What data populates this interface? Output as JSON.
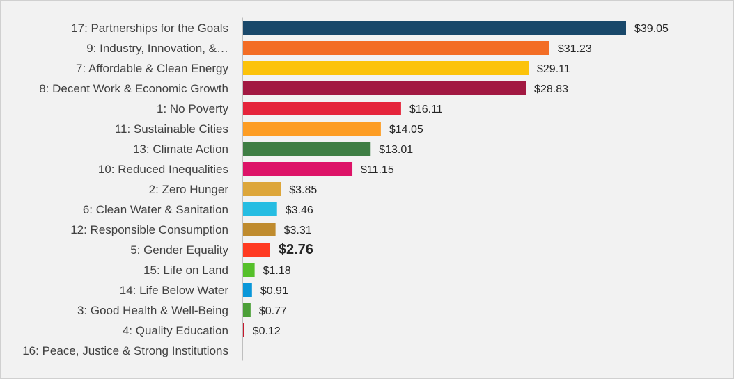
{
  "chart_data": {
    "type": "bar",
    "orientation": "horizontal",
    "title": "",
    "xlabel": "",
    "ylabel": "",
    "xlim": [
      0,
      39.05
    ],
    "grid": false,
    "legend": "none",
    "categories": [
      "17: Partnerships for the Goals",
      "9: Industry, Innovation, &…",
      "7: Affordable & Clean Energy",
      "8: Decent Work & Economic Growth",
      "1: No Poverty",
      "11: Sustainable Cities",
      "13: Climate Action",
      "10: Reduced Inequalities",
      "2: Zero Hunger",
      "6: Clean Water & Sanitation",
      "12: Responsible Consumption",
      "5: Gender Equality",
      "15: Life on Land",
      "14: Life Below Water",
      "3: Good Health & Well-Being",
      "4: Quality Education",
      "16: Peace, Justice & Strong Institutions"
    ],
    "values": [
      39.05,
      31.23,
      29.11,
      28.83,
      16.11,
      14.05,
      13.01,
      11.15,
      3.85,
      3.46,
      3.31,
      2.76,
      1.18,
      0.91,
      0.77,
      0.12,
      0
    ],
    "value_labels": [
      "$39.05",
      "$31.23",
      "$29.11",
      "$28.83",
      "$16.11",
      "$14.05",
      "$13.01",
      "$11.15",
      "$3.85",
      "$3.46",
      "$3.31",
      "$2.76",
      "$1.18",
      "$0.91",
      "$0.77",
      "$0.12",
      ""
    ],
    "colors": [
      "#19486a",
      "#f36d25",
      "#fcc30b",
      "#a21942",
      "#e5243b",
      "#fd9d24",
      "#3f7e44",
      "#dd1367",
      "#dda63a",
      "#26bde2",
      "#bf8b2e",
      "#ff3a21",
      "#56c02b",
      "#0a97d9",
      "#4c9f38",
      "#c5192d",
      "#00689d"
    ],
    "emphasized_label": "$2.76"
  }
}
